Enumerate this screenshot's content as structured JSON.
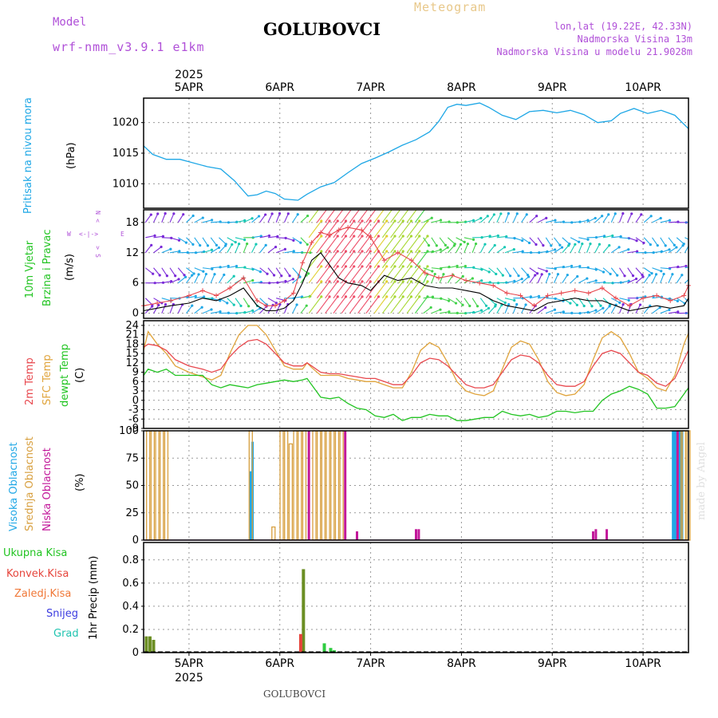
{
  "header": {
    "model_label": "Model",
    "model_name": "wrf-nmm_v3.9.1 e1km",
    "station": "GOLUBOVCI",
    "meteogram": "Meteogram",
    "lonlat": "lon,lat (19.22E, 42.33N)",
    "elevation": "Nadmorska Visina 13m",
    "model_elevation": "Nadmorska Visina u modelu 21.9028m",
    "footer_station": "GOLUBOVCI",
    "watermark": "made by Angel"
  },
  "colors": {
    "pressure": "#1ea7e6",
    "temp2m": "#e8484e",
    "sfc": "#e0a43c",
    "dewpt": "#22c422",
    "high_cloud": "#22a8e6",
    "mid_cloud": "#d8a040",
    "low_cloud": "#c2189a",
    "total_precip": "#2ecc40",
    "convective": "#e6453c",
    "frozen": "#f07838",
    "snow": "#3c3ce0",
    "hail": "#20c4b0",
    "violet": "#b050d8"
  },
  "time_axis": {
    "year": "2025",
    "ticks": [
      "5APR",
      "6APR",
      "7APR",
      "8APR",
      "9APR",
      "10APR"
    ]
  },
  "panels": {
    "pressure": {
      "title": "Pritisak na nivou mora",
      "unit": "(hPa)"
    },
    "wind": {
      "title1": "10m Vjetar",
      "title2": "Brzina i Pravac",
      "unit": "(m/s)",
      "compass_n": "N",
      "compass_s": "S",
      "compass_w": "W",
      "compass_e": "E"
    },
    "temp": {
      "title1": "2m Temp",
      "title2": "SFC Temp",
      "title3": "dewpt Temp",
      "unit": "(C)"
    },
    "cloud": {
      "title1": "Visoka Oblacnost",
      "title2": "Srednja Oblacnost",
      "title3": "Niska Oblacnost",
      "unit": "(%)"
    },
    "precip": {
      "unit": "1hr Precip (mm)",
      "legend": [
        "Ukupna Kisa",
        "Konvek.Kisa",
        "Zaledj.Kisa",
        "Snijeg",
        "Grad"
      ]
    }
  },
  "chart_data": [
    {
      "type": "line",
      "title": "Pritisak na nivou mora",
      "ylabel": "(hPa)",
      "ylim": [
        1006,
        1024
      ],
      "yticks": [
        1010,
        1015,
        1020
      ],
      "x": [
        4.5,
        4.6,
        4.75,
        4.9,
        5.0,
        5.2,
        5.35,
        5.5,
        5.65,
        5.75,
        5.85,
        5.95,
        6.05,
        6.2,
        6.3,
        6.45,
        6.6,
        6.75,
        6.9,
        7.05,
        7.2,
        7.35,
        7.5,
        7.65,
        7.75,
        7.85,
        7.95,
        8.05,
        8.2,
        8.3,
        8.45,
        8.6,
        8.75,
        8.9,
        9.05,
        9.2,
        9.35,
        9.5,
        9.65,
        9.75,
        9.9,
        10.05,
        10.2,
        10.35,
        10.5
      ],
      "values": [
        1016.2,
        1014.8,
        1014.0,
        1014.0,
        1013.6,
        1012.8,
        1012.4,
        1010.5,
        1008.0,
        1008.2,
        1008.8,
        1008.4,
        1007.5,
        1007.3,
        1008.3,
        1009.5,
        1010.2,
        1011.8,
        1013.3,
        1014.2,
        1015.2,
        1016.3,
        1017.2,
        1018.5,
        1020.2,
        1022.5,
        1023.0,
        1022.8,
        1023.2,
        1022.5,
        1021.2,
        1020.5,
        1021.8,
        1022.0,
        1021.6,
        1022.0,
        1021.3,
        1020.0,
        1020.3,
        1021.5,
        1022.3,
        1021.5,
        1022.0,
        1021.2,
        1019.0
      ]
    },
    {
      "type": "line",
      "title": "10m Vjetar Brzina i Pravac",
      "ylabel": "(m/s)",
      "ylim": [
        -1,
        20.5
      ],
      "yticks": [
        0,
        6,
        12,
        18
      ],
      "x": [
        4.5,
        4.65,
        4.8,
        5.0,
        5.15,
        5.3,
        5.45,
        5.6,
        5.75,
        5.85,
        5.95,
        6.05,
        6.15,
        6.25,
        6.35,
        6.45,
        6.55,
        6.65,
        6.75,
        6.9,
        7.0,
        7.15,
        7.3,
        7.45,
        7.6,
        7.75,
        7.9,
        8.05,
        8.2,
        8.35,
        8.5,
        8.65,
        8.8,
        8.95,
        9.1,
        9.25,
        9.4,
        9.55,
        9.7,
        9.85,
        10.0,
        10.15,
        10.3,
        10.45,
        10.5
      ],
      "series": [
        {
          "name": "",
          "values": [
            1.5,
            2.0,
            2.5,
            3.5,
            4.5,
            3.5,
            5.0,
            7.0,
            2.5,
            1.5,
            1.5,
            2.5,
            4.0,
            10.0,
            14.0,
            16.0,
            15.5,
            16.5,
            17.0,
            16.5,
            15.0,
            10.5,
            12.0,
            10.5,
            8.0,
            7.0,
            7.5,
            6.5,
            6.0,
            5.5,
            4.0,
            3.5,
            1.5,
            3.5,
            4.0,
            4.5,
            4.0,
            5.0,
            3.0,
            1.5,
            3.0,
            3.5,
            2.5,
            3.5,
            5.5
          ]
        },
        {
          "name": "",
          "values": [
            0.5,
            1.0,
            1.5,
            2.0,
            3.0,
            2.5,
            3.5,
            5.0,
            1.5,
            0.5,
            0.5,
            1.0,
            2.5,
            6.0,
            10.5,
            12.0,
            9.5,
            7.0,
            6.0,
            5.5,
            4.5,
            7.5,
            6.5,
            7.0,
            5.5,
            5.0,
            5.0,
            4.5,
            4.0,
            2.5,
            1.5,
            1.0,
            0.5,
            2.0,
            2.5,
            3.0,
            2.5,
            2.5,
            1.5,
            0.5,
            1.0,
            1.5,
            1.0,
            1.5,
            3.0
          ]
        }
      ]
    },
    {
      "type": "line",
      "title": "2m Temp / SFC Temp / dewpt Temp",
      "ylabel": "(C)",
      "ylim": [
        -9,
        25.5
      ],
      "yticks": [
        -9,
        -6,
        -3,
        0,
        3,
        6,
        9,
        12,
        15,
        18,
        21,
        24
      ],
      "x": [
        4.5,
        4.55,
        4.65,
        4.75,
        4.85,
        5.0,
        5.15,
        5.25,
        5.35,
        5.45,
        5.55,
        5.65,
        5.75,
        5.85,
        5.95,
        6.05,
        6.15,
        6.25,
        6.3,
        6.35,
        6.45,
        6.55,
        6.65,
        6.75,
        6.85,
        6.95,
        7.05,
        7.15,
        7.25,
        7.35,
        7.45,
        7.55,
        7.65,
        7.75,
        7.85,
        7.95,
        8.05,
        8.15,
        8.25,
        8.35,
        8.45,
        8.55,
        8.65,
        8.75,
        8.85,
        8.95,
        9.05,
        9.15,
        9.25,
        9.35,
        9.45,
        9.55,
        9.65,
        9.75,
        9.85,
        9.95,
        10.05,
        10.15,
        10.25,
        10.35,
        10.45,
        10.5
      ],
      "series": [
        {
          "name": "2m Temp",
          "values": [
            17,
            18,
            17.5,
            16,
            13,
            11,
            10,
            9,
            10,
            14,
            17,
            19,
            19.5,
            18,
            15,
            12,
            11,
            11,
            12,
            11,
            9,
            8.5,
            8.5,
            8,
            7.5,
            7,
            7,
            6,
            5,
            5,
            8,
            12,
            13.5,
            13,
            11,
            8,
            5,
            4,
            4,
            5,
            9,
            13,
            14.5,
            14,
            12,
            8,
            5,
            4.5,
            4.5,
            6,
            11,
            15,
            16,
            15,
            12,
            9,
            8,
            5.5,
            4.5,
            7,
            13,
            16
          ]
        },
        {
          "name": "SFC Temp",
          "values": [
            16,
            22,
            18,
            15,
            11,
            9,
            7.5,
            6.5,
            8,
            15,
            21,
            24,
            24,
            21,
            16,
            11,
            10,
            10,
            12,
            10.5,
            8,
            8,
            8,
            7,
            6.5,
            6,
            6,
            5,
            4,
            4,
            9,
            16,
            18.5,
            17,
            12,
            6,
            3,
            2,
            1.5,
            3,
            10,
            17,
            19,
            18,
            13,
            6,
            2.5,
            1.5,
            2,
            5,
            13,
            20,
            22,
            20,
            15,
            9,
            7,
            4,
            3,
            8,
            18,
            21.5
          ]
        },
        {
          "name": "dewpt Temp",
          "values": [
            8,
            10,
            9,
            10,
            8,
            8,
            8,
            5,
            4,
            5,
            4.5,
            4,
            5,
            5.5,
            6,
            6.5,
            6,
            6.5,
            7,
            5,
            1,
            0.5,
            1,
            -1,
            -2.5,
            -3,
            -5,
            -5.5,
            -4.5,
            -6.5,
            -5.5,
            -5.5,
            -4.5,
            -5,
            -5,
            -6.5,
            -6.5,
            -6,
            -5.5,
            -5.5,
            -3.5,
            -4.5,
            -5,
            -4.5,
            -5.5,
            -5,
            -3.5,
            -3.5,
            -4,
            -3.5,
            -3.5,
            0,
            2,
            3,
            4.5,
            3.5,
            2,
            -2.5,
            -2.5,
            -2,
            2,
            4
          ]
        }
      ]
    },
    {
      "type": "bar",
      "title": "Visoka / Srednja / Niska Oblacnost",
      "ylabel": "(%)",
      "ylim": [
        0,
        100
      ],
      "yticks": [
        0,
        25,
        50,
        75,
        100
      ],
      "series": [
        {
          "name": "Visoka Oblacnost",
          "points": [
            [
              5.68,
              63
            ],
            [
              5.7,
              90
            ],
            [
              10.33,
              100
            ],
            [
              10.35,
              100
            ],
            [
              10.37,
              100
            ],
            [
              10.4,
              100
            ],
            [
              10.43,
              100
            ]
          ]
        },
        {
          "name": "Srednja Oblacnost",
          "points": [
            [
              4.55,
              100
            ],
            [
              4.6,
              100
            ],
            [
              4.65,
              100
            ],
            [
              4.7,
              100
            ],
            [
              4.75,
              100
            ],
            [
              5.68,
              100
            ],
            [
              5.93,
              12
            ],
            [
              6.02,
              100
            ],
            [
              6.07,
              100
            ],
            [
              6.12,
              88
            ],
            [
              6.17,
              100
            ],
            [
              6.22,
              100
            ],
            [
              6.27,
              100
            ],
            [
              6.38,
              100
            ],
            [
              6.43,
              100
            ],
            [
              6.48,
              100
            ],
            [
              6.53,
              100
            ],
            [
              6.58,
              100
            ],
            [
              6.63,
              100
            ],
            [
              6.68,
              100
            ],
            [
              10.4,
              100
            ],
            [
              10.45,
              100
            ],
            [
              10.5,
              100
            ]
          ]
        },
        {
          "name": "Niska Oblacnost",
          "points": [
            [
              6.32,
              100
            ],
            [
              6.72,
              100
            ],
            [
              6.85,
              8
            ],
            [
              7.5,
              10
            ],
            [
              7.53,
              10
            ],
            [
              9.45,
              8
            ],
            [
              9.48,
              10
            ],
            [
              9.6,
              10
            ],
            [
              10.38,
              100
            ]
          ]
        }
      ]
    },
    {
      "type": "bar",
      "title": "1hr Precip",
      "ylabel": "1hr Precip (mm)",
      "ylim": [
        0,
        0.95
      ],
      "yticks": [
        0,
        0.2,
        0.4,
        0.6,
        0.8
      ],
      "series": [
        {
          "name": "Ukupna Kisa",
          "points": [
            [
              4.53,
              0.14
            ],
            [
              4.57,
              0.14
            ],
            [
              4.61,
              0.11
            ],
            [
              6.26,
              0.72
            ],
            [
              6.49,
              0.08
            ],
            [
              6.56,
              0.04
            ],
            [
              6.6,
              0.02
            ]
          ]
        },
        {
          "name": "Konvek.Kisa",
          "points": [
            [
              6.23,
              0.16
            ]
          ]
        },
        {
          "name": "Zaledj.Kisa",
          "points": []
        },
        {
          "name": "Snijeg",
          "points": []
        },
        {
          "name": "Grad",
          "points": []
        }
      ]
    }
  ]
}
